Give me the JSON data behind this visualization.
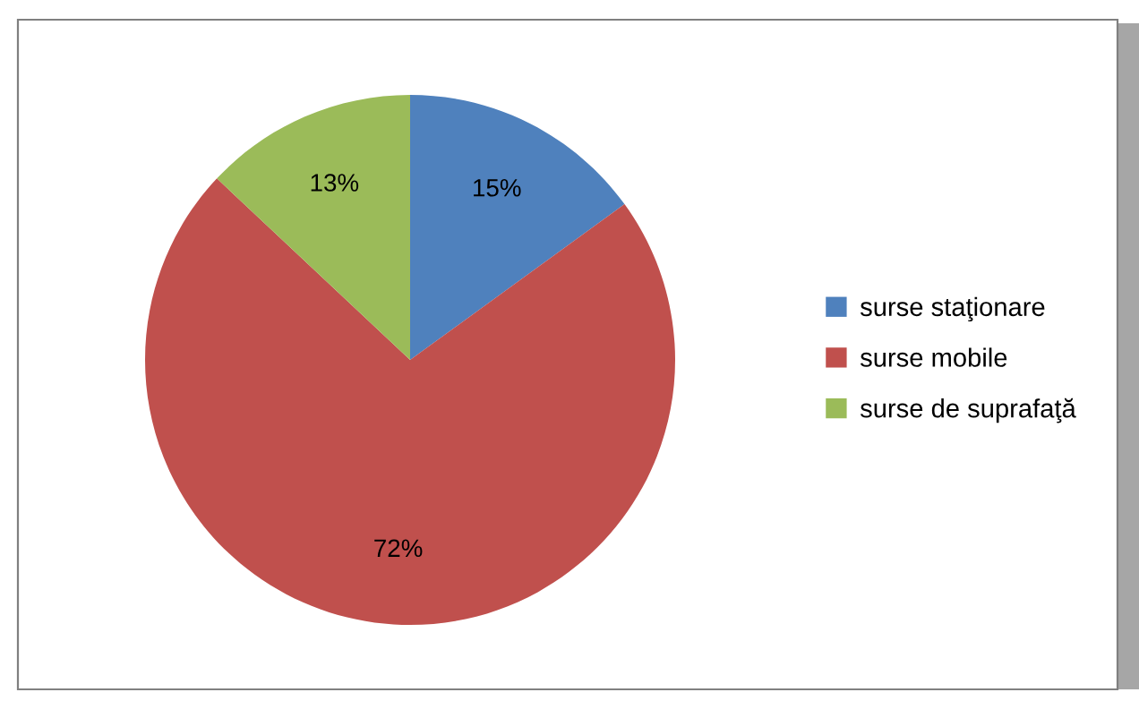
{
  "chart_data": {
    "type": "pie",
    "categories": [
      "surse staţionare",
      "surse mobile",
      "surse de suprafaţă"
    ],
    "values": [
      15,
      72,
      13
    ],
    "colors": [
      "#4f81bd",
      "#c0504d",
      "#9bbb59"
    ],
    "value_labels": [
      "15%",
      "72%",
      "13%"
    ],
    "legend": "right"
  }
}
